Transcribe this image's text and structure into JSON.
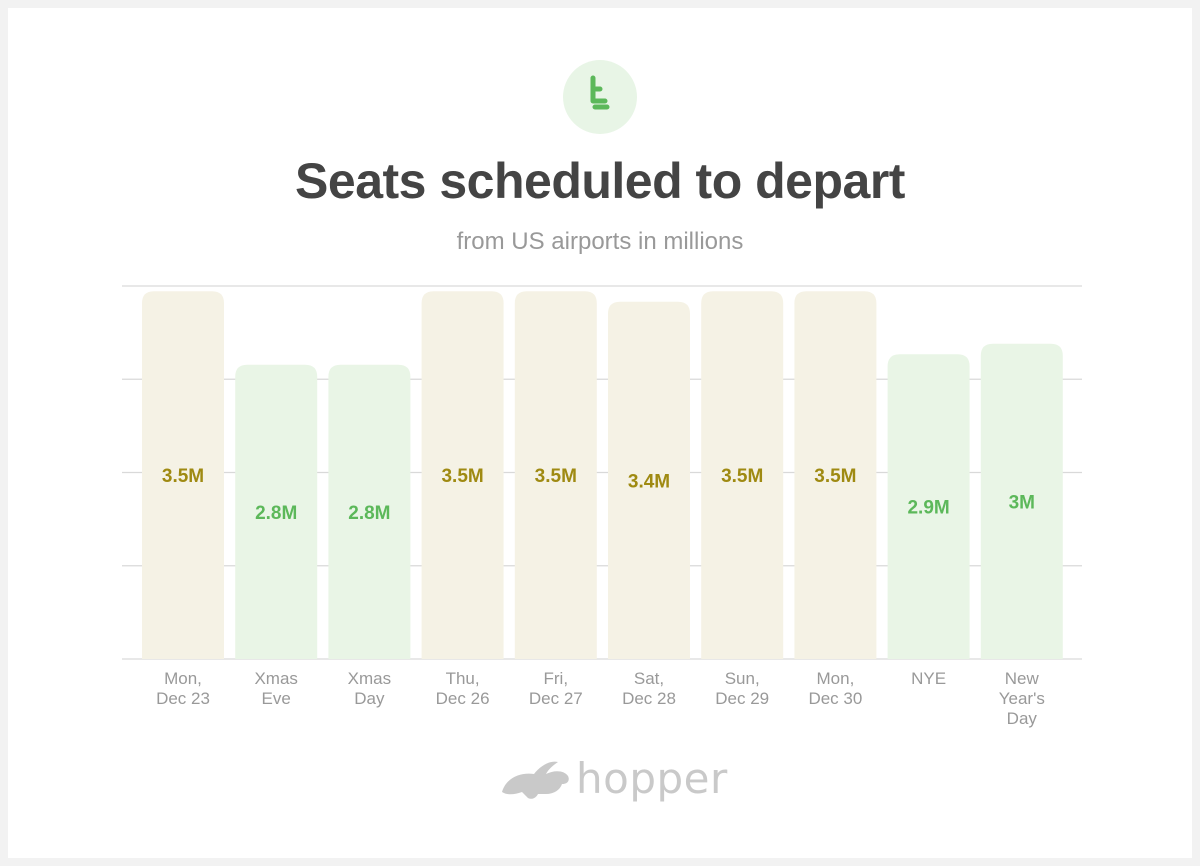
{
  "header": {
    "icon": "seat-icon",
    "title": "Seats scheduled to depart",
    "subtitle": "from US airports in millions"
  },
  "colors": {
    "beige_bar": "#f5f2e5",
    "beige_label": "#9f8a12",
    "green_bar": "#e9f5e6",
    "green_label": "#5cb85a",
    "icon_green": "#5cb85a",
    "gridline": "#d9d9d9",
    "tick_text": "#999999"
  },
  "chart_data": {
    "type": "bar",
    "title": "Seats scheduled to depart",
    "subtitle": "from US airports in millions",
    "xlabel": "",
    "ylabel": "",
    "ylim": [
      0,
      3.55
    ],
    "grid": true,
    "categories": [
      [
        "Mon,",
        "Dec 23"
      ],
      [
        "Xmas",
        "Eve"
      ],
      [
        "Xmas",
        "Day"
      ],
      [
        "Thu,",
        "Dec 26"
      ],
      [
        "Fri,",
        "Dec 27"
      ],
      [
        "Sat,",
        "Dec 28"
      ],
      [
        "Sun,",
        "Dec 29"
      ],
      [
        "Mon,",
        "Dec 30"
      ],
      [
        "NYE"
      ],
      [
        "New",
        "Year's",
        "Day"
      ]
    ],
    "values": [
      3.5,
      2.8,
      2.8,
      3.5,
      3.5,
      3.4,
      3.5,
      3.5,
      2.9,
      3.0
    ],
    "data_labels": [
      "3.5M",
      "2.8M",
      "2.8M",
      "3.5M",
      "3.5M",
      "3.4M",
      "3.5M",
      "3.5M",
      "2.9M",
      "3M"
    ],
    "bar_colors": [
      "beige",
      "green",
      "green",
      "beige",
      "beige",
      "beige",
      "beige",
      "beige",
      "green",
      "green"
    ]
  },
  "footer": {
    "logo": "hopper-bunny-logo",
    "brand": "hopper"
  }
}
